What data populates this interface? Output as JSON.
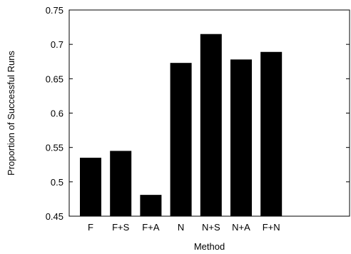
{
  "chart_data": {
    "type": "bar",
    "categories": [
      "F",
      "F+S",
      "F+A",
      "N",
      "N+S",
      "N+A",
      "F+N"
    ],
    "values": [
      0.535,
      0.545,
      0.481,
      0.673,
      0.715,
      0.678,
      0.689
    ],
    "title": "",
    "xlabel": "Method",
    "ylabel": "Proportion of Successful Runs",
    "ylim": [
      0.45,
      0.75
    ],
    "yticks": [
      0.45,
      0.5,
      0.55,
      0.6,
      0.65,
      0.7,
      0.75
    ],
    "ytick_labels": [
      "0.45",
      "0.5",
      "0.55",
      "0.6",
      "0.65",
      "0.7",
      "0.75"
    ],
    "grid": false,
    "legend": "none",
    "bar_color": "#000000"
  }
}
